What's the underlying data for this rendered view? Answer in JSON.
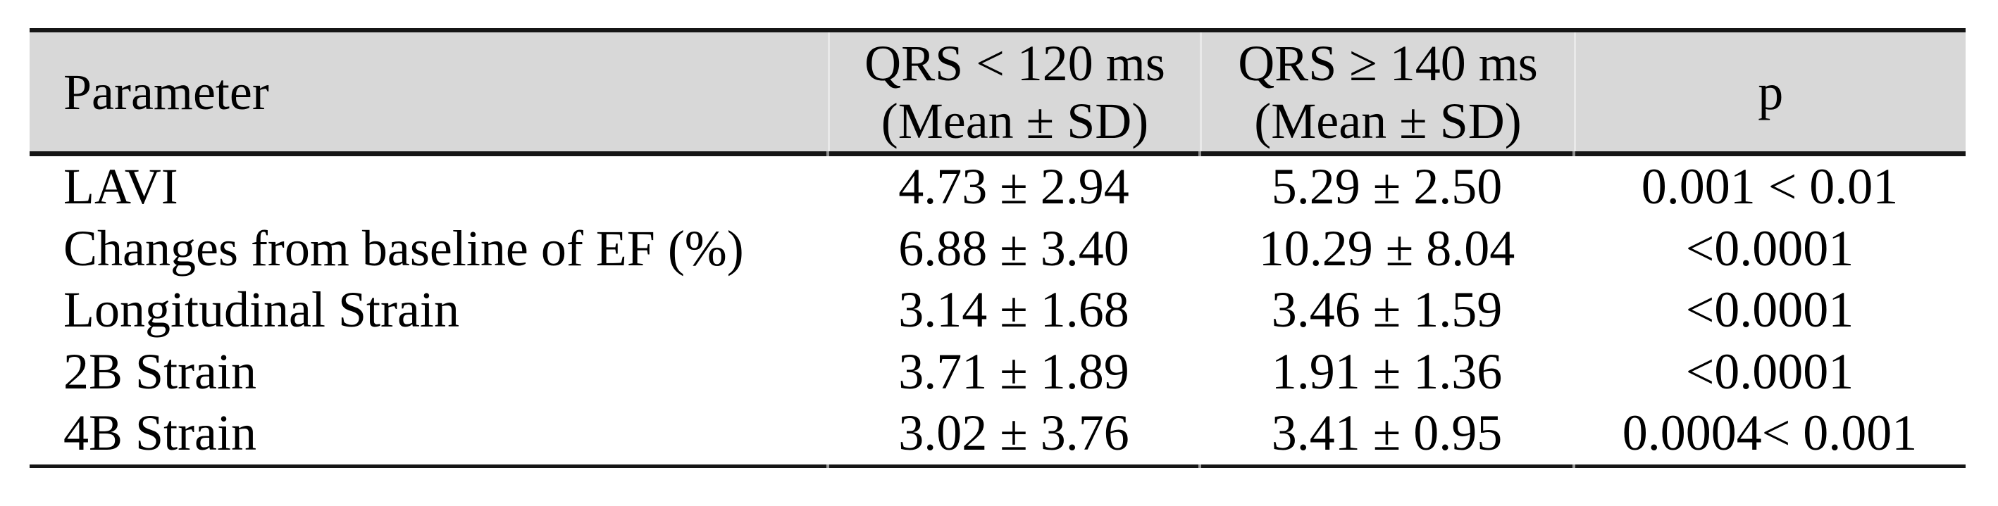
{
  "chart_data": {
    "type": "table",
    "columns": [
      "Parameter",
      "QRS < 120 ms (Mean ± SD)",
      "QRS ≥ 140 ms (Mean ± SD)",
      "p"
    ],
    "rows": [
      [
        "LAVI",
        "4.73 ± 2.94",
        "5.29 ± 2.50",
        "0.001 < 0.01"
      ],
      [
        "Changes from baseline of EF (%)",
        "6.88 ± 3.40",
        "10.29 ± 8.04",
        "<0.0001"
      ],
      [
        "Longitudinal Strain",
        "3.14 ± 1.68",
        "3.46 ± 1.59",
        "<0.0001"
      ],
      [
        "2B Strain",
        "3.71 ± 1.89",
        "1.91 ± 1.36",
        "<0.0001"
      ],
      [
        "4B Strain",
        "3.02 ± 3.76",
        "3.41 ± 0.95",
        "0.0004< 0.001"
      ]
    ]
  },
  "header": {
    "param": "Parameter",
    "qrs_lt": {
      "line1": "QRS < 120 ms",
      "line2": "(Mean ± SD)"
    },
    "qrs_ge": {
      "line1": "QRS ≥ 140 ms",
      "line2": "(Mean ± SD)"
    },
    "p": "p"
  },
  "colors": {
    "header_bg": "#d8d8d8",
    "border": "#151515",
    "header_separator": "#e9e9e9",
    "text": "#000000",
    "page_bg": "#ffffff"
  }
}
